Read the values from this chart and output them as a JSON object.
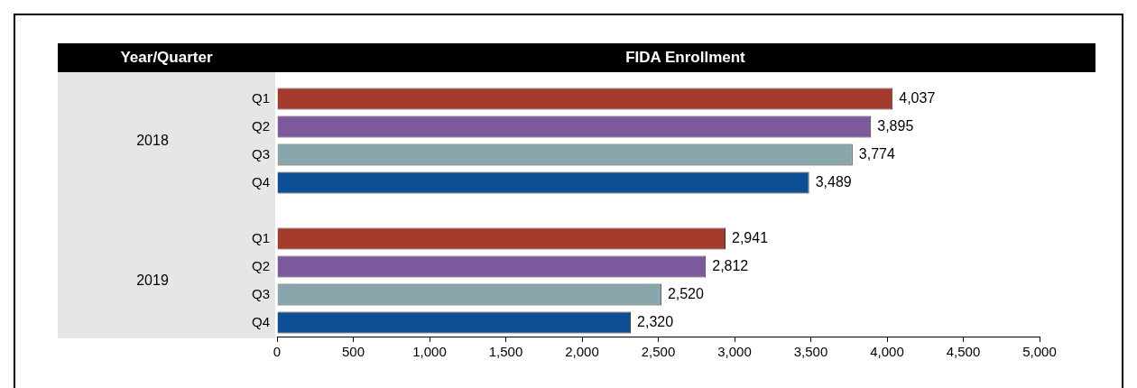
{
  "chart_data": {
    "type": "bar",
    "orientation": "horizontal",
    "title": "FIDA Enrollment",
    "ylabel": "Year/Quarter",
    "categories": [
      "Q1",
      "Q2",
      "Q3",
      "Q4",
      null,
      "Q1",
      "Q2",
      "Q3",
      "Q4"
    ],
    "values": [
      4037,
      3895,
      3774,
      3489,
      null,
      2941,
      2812,
      2520,
      2320
    ],
    "colors": [
      "#a33a2b",
      "#7d5a9d",
      "#8aa6ad",
      "#0d4f94",
      null,
      "#a33a2b",
      "#7d5a9d",
      "#8aa6ad",
      "#0d4f94"
    ],
    "xlim": [
      0,
      5000
    ],
    "xticks": [
      0,
      {
        "value": 500,
        "label": "500"
      },
      {
        "value": 1000,
        "label": "1,000"
      },
      {
        "value": 1500,
        "label": "1,500"
      },
      {
        "value": 2000,
        "label": "2,000"
      },
      {
        "value": 2500,
        "label": "2,500"
      },
      {
        "value": 3000,
        "label": "3,000"
      },
      {
        "value": 3500,
        "label": "3,500"
      },
      {
        "value": 4000,
        "label": "4,000"
      },
      {
        "value": 4500,
        "label": "4,500"
      },
      {
        "value": 5000,
        "label": "5,000"
      }
    ],
    "annotations": [
      "2018",
      "2019"
    ],
    "value_labels": [
      "4,037",
      "3,895",
      "3,774",
      "3,489",
      null,
      "2,941",
      "2,812",
      "2,520",
      "2,320"
    ]
  }
}
